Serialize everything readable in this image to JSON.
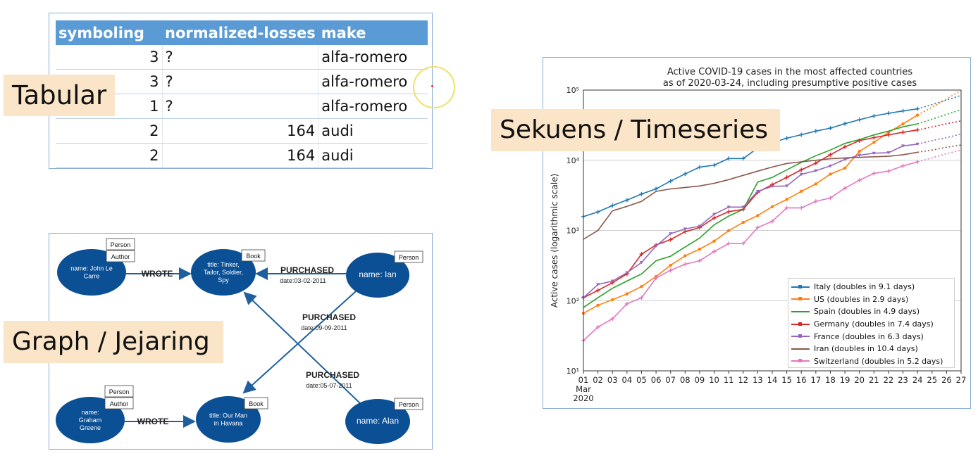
{
  "table": {
    "headers": [
      "symboling",
      "normalized-losses",
      "make"
    ],
    "rows": [
      [
        "3",
        "?",
        "alfa-romero"
      ],
      [
        "3",
        "?",
        "alfa-romero"
      ],
      [
        "1",
        "?",
        "alfa-romero"
      ],
      [
        "2",
        "164",
        "audi"
      ],
      [
        "2",
        "164",
        "audi"
      ]
    ]
  },
  "labels": {
    "tabular": "Tabular",
    "graph": "Graph / Jejaring",
    "timeseries": "Sekuens / Timeseries"
  },
  "graph": {
    "nodes": {
      "le_carre": {
        "lines": [
          "name: John Le",
          "Carre"
        ],
        "tags": [
          "Person",
          "Author"
        ]
      },
      "tinker": {
        "lines": [
          "title: Tinker,",
          "Tailor, Soldier,",
          "Spy"
        ],
        "tags": [
          "Book"
        ]
      },
      "ian": {
        "lines": [
          "name: Ian"
        ],
        "tags": [
          "Person"
        ]
      },
      "greene": {
        "lines": [
          "name:",
          "Graham",
          "Greene"
        ],
        "tags": [
          "Person",
          "Author"
        ]
      },
      "havana": {
        "lines": [
          "title: Our Man",
          "in Havana"
        ],
        "tags": [
          "Book"
        ]
      },
      "alan": {
        "lines": [
          "name: Alan"
        ],
        "tags": [
          "Person"
        ]
      }
    },
    "edges": {
      "wrote_top": "WROTE",
      "wrote_bottom": "WROTE",
      "purchased_1": {
        "label": "PURCHASED",
        "date": "date:03-02-2011"
      },
      "purchased_2": {
        "label": "PURCHASED",
        "date": "date:09-09-2011"
      },
      "purchased_3": {
        "label": "PURCHASED",
        "date": "date:05-07-2011"
      }
    },
    "colors": {
      "node": "#0b4f94",
      "edge": "#1f5f9e"
    }
  },
  "chart_data": {
    "type": "line",
    "title": "Active COVID-19 cases in the most affected countries",
    "subtitle": "as of 2020-03-24, including presumptive positive cases",
    "ylabel": "Active cases (logarithmic scale)",
    "xlabel": "",
    "yscale": "log",
    "ylim": [
      10,
      100000
    ],
    "y_tick_labels": [
      "10¹",
      "10²",
      "10³",
      "10⁴",
      "10⁵"
    ],
    "x_tick_labels": [
      "01",
      "02",
      "03",
      "04",
      "05",
      "06",
      "07",
      "08",
      "09",
      "10",
      "11",
      "12",
      "13",
      "14",
      "15",
      "16",
      "17",
      "18",
      "19",
      "20",
      "21",
      "22",
      "23",
      "24",
      "25",
      "26",
      "27"
    ],
    "x_tick_sublabels": [
      "Mar",
      "2020"
    ],
    "x": [
      1,
      2,
      3,
      4,
      5,
      6,
      7,
      8,
      9,
      10,
      11,
      12,
      13,
      14,
      15,
      16,
      17,
      18,
      19,
      20,
      21,
      22,
      23,
      24
    ],
    "grid": true,
    "legend_position": "lower-right",
    "series": [
      {
        "name": "Italy (doubles in 9.1 days)",
        "color": "#1f77b4",
        "marker": "+",
        "values": [
          1577,
          1835,
          2263,
          2706,
          3296,
          3916,
          5061,
          6387,
          7985,
          8514,
          10590,
          10590,
          14955,
          17750,
          20603,
          23073,
          26062,
          28710,
          33190,
          37860,
          42681,
          46638,
          50418,
          54030
        ],
        "projection": [
          54030,
          62000,
          72000,
          84000
        ]
      },
      {
        "name": "US (doubles in 2.9 days)",
        "color": "#ff7f0e",
        "marker": "o",
        "values": [
          66,
          86,
          103,
          125,
          159,
          221,
          319,
          435,
          541,
          704,
          994,
          1301,
          1630,
          2183,
          2770,
          3613,
          4596,
          6344,
          7728,
          13383,
          18000,
          25000,
          33000,
          44000
        ],
        "projection": [
          44000,
          57000,
          75000,
          99000
        ]
      },
      {
        "name": "Spain (doubles in 4.9 days)",
        "color": "#2ca02c",
        "marker": "",
        "values": [
          80,
          110,
          150,
          190,
          240,
          370,
          430,
          580,
          780,
          1200,
          1600,
          2000,
          4900,
          5700,
          7300,
          9300,
          11600,
          14000,
          17400,
          19700,
          23000,
          26000,
          30000,
          33000
        ],
        "projection": [
          33000,
          38500,
          45000,
          52500
        ]
      },
      {
        "name": "Germany (doubles in 7.4 days)",
        "color": "#d62728",
        "marker": "+",
        "values": [
          110,
          140,
          180,
          240,
          460,
          620,
          740,
          960,
          1100,
          1500,
          1850,
          2000,
          3500,
          4500,
          5700,
          7300,
          9100,
          12000,
          15500,
          19000,
          21000,
          23000,
          25000,
          27000
        ],
        "projection": [
          27000,
          29800,
          33100,
          36400
        ]
      },
      {
        "name": "France (doubles in 6.3 days)",
        "color": "#9467bd",
        "marker": "v",
        "values": [
          110,
          170,
          190,
          250,
          350,
          600,
          900,
          1050,
          1150,
          1700,
          2150,
          2150,
          3600,
          4250,
          4300,
          6300,
          7100,
          8300,
          10300,
          11800,
          12600,
          12800,
          16000,
          17000
        ],
        "projection": [
          17000,
          19000,
          21000,
          23700
        ]
      },
      {
        "name": "Iran (doubles in 10.4 days)",
        "color": "#8c564b",
        "marker": "",
        "values": [
          750,
          1000,
          1900,
          2200,
          2600,
          3600,
          3900,
          4100,
          4300,
          4700,
          5300,
          6100,
          7000,
          8000,
          9000,
          9500,
          10000,
          10500,
          10800,
          11000,
          11200,
          11400,
          12000,
          13000
        ],
        "projection": [
          13000,
          14000,
          15300,
          16500
        ]
      },
      {
        "name": "Switzerland (doubles in 5.2 days)",
        "color": "#e377c2",
        "marker": "+",
        "values": [
          27,
          42,
          55,
          90,
          110,
          210,
          270,
          330,
          370,
          500,
          650,
          650,
          1100,
          1350,
          2100,
          2100,
          2600,
          2900,
          4000,
          5200,
          6500,
          7000,
          8300,
          9500
        ],
        "projection": [
          9500,
          10800,
          12400,
          14000
        ]
      }
    ]
  }
}
